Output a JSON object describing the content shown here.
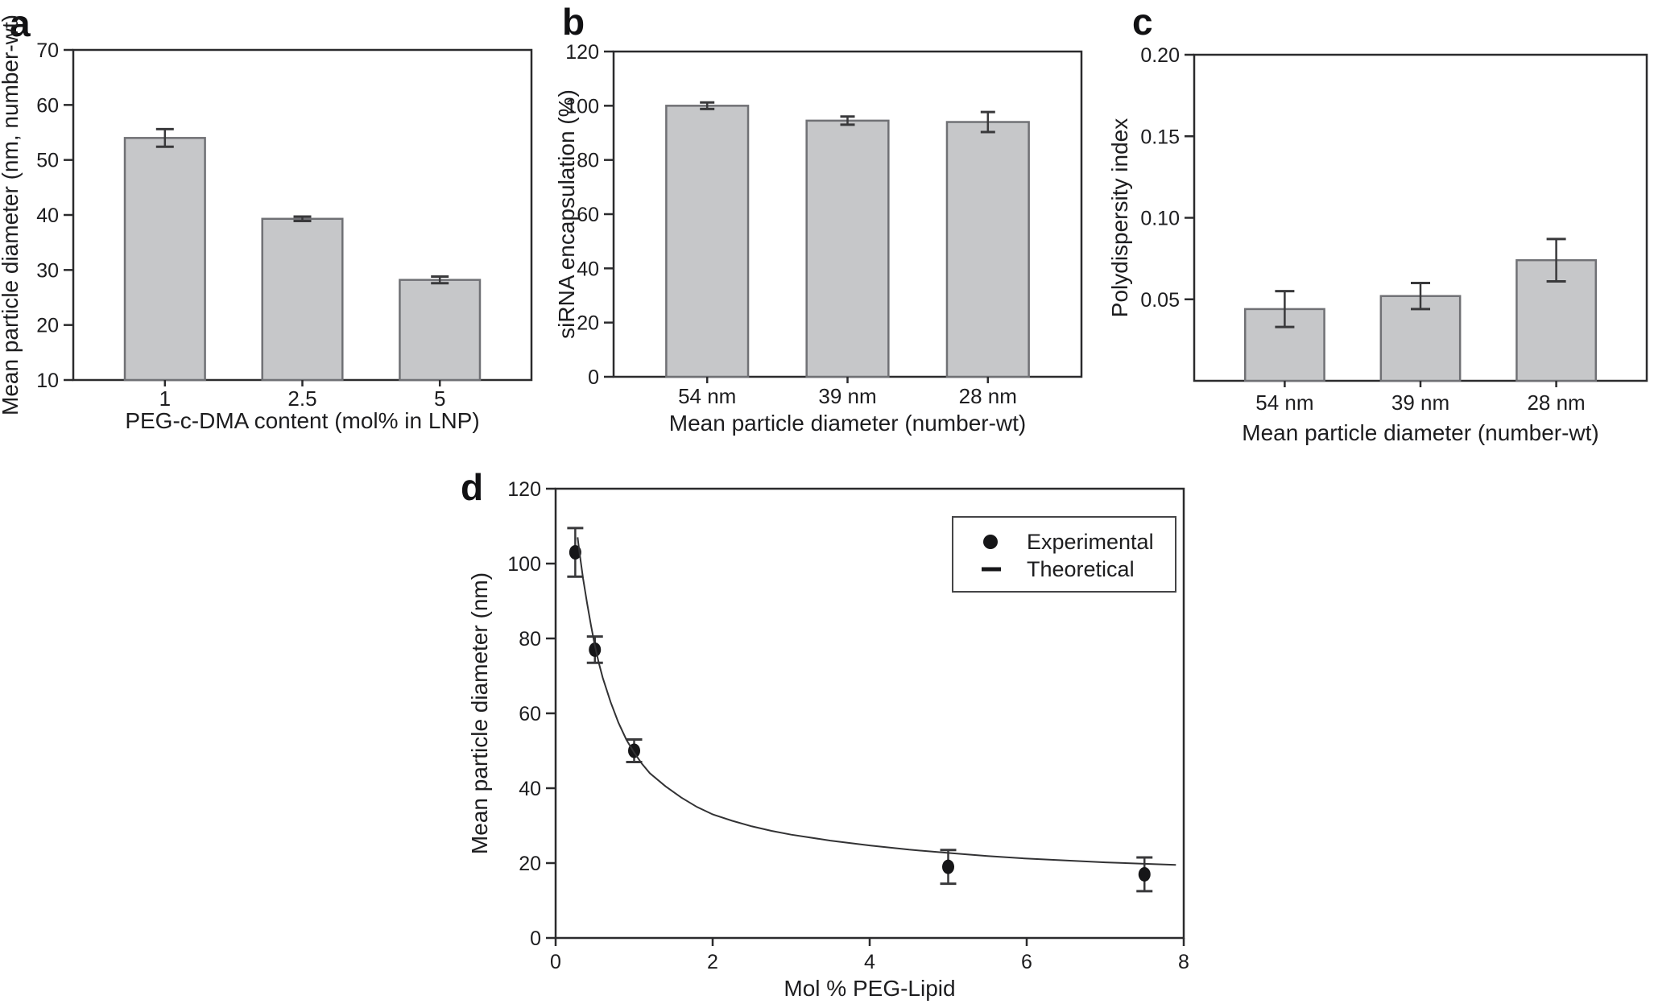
{
  "figure": {
    "panels": [
      {
        "id": "a",
        "label": "a"
      },
      {
        "id": "b",
        "label": "b"
      },
      {
        "id": "c",
        "label": "c"
      },
      {
        "id": "d",
        "label": "d"
      }
    ],
    "colors": {
      "background": "#ffffff",
      "bar_fill": "#c6c7c9",
      "bar_edge": "#707175",
      "error": "#39393b",
      "axis": "#2b2b2d",
      "text": "#1d1d1f",
      "curve": "#323234",
      "marker": "#161618",
      "legend_border": "#454547"
    }
  },
  "chart_data": [
    {
      "panel": "a",
      "type": "bar",
      "categories": [
        "1",
        "2.5",
        "5"
      ],
      "values": [
        54,
        39.3,
        28.2
      ],
      "errors": [
        1.6,
        0.4,
        0.6
      ],
      "xlabel": "PEG-c-DMA content (mol% in LNP)",
      "ylabel": "Mean particle diameter (nm, number-wt)",
      "ylim": [
        10,
        70
      ],
      "yticks": [
        10,
        20,
        30,
        40,
        50,
        60,
        70
      ],
      "ytick_decimals": 0,
      "grid": false,
      "legend_position": "none"
    },
    {
      "panel": "b",
      "type": "bar",
      "categories": [
        "54 nm",
        "39 nm",
        "28 nm"
      ],
      "values": [
        100,
        94.5,
        94
      ],
      "errors": [
        1.2,
        1.5,
        3.7
      ],
      "xlabel": "Mean particle diameter (number-wt)",
      "ylabel": "siRNA encapsulation (%)",
      "ylim": [
        0,
        120
      ],
      "yticks": [
        0,
        20,
        40,
        60,
        80,
        100,
        120
      ],
      "ytick_decimals": 0,
      "grid": false,
      "legend_position": "none"
    },
    {
      "panel": "c",
      "type": "bar",
      "categories": [
        "54 nm",
        "39 nm",
        "28 nm"
      ],
      "values": [
        0.044,
        0.052,
        0.074
      ],
      "errors": [
        0.011,
        0.008,
        0.013
      ],
      "xlabel": "Mean particle diameter (number-wt)",
      "ylabel": "Polydispersity index",
      "ylim": [
        0,
        0.2
      ],
      "yticks": [
        0.05,
        0.1,
        0.15,
        0.2
      ],
      "ytick_decimals": 2,
      "grid": false,
      "legend_position": "none"
    },
    {
      "panel": "d",
      "type": "scatter",
      "xlabel": "Mol % PEG-Lipid",
      "ylabel": "Mean particle diameter (nm)",
      "xlim": [
        0,
        8
      ],
      "xticks": [
        0,
        2,
        4,
        6,
        8
      ],
      "ylim": [
        0,
        120
      ],
      "yticks": [
        0,
        20,
        40,
        60,
        80,
        100,
        120
      ],
      "ytick_decimals": 0,
      "grid": false,
      "legend_position": "top-right",
      "legend": [
        {
          "label": "Experimental",
          "marker": "circle"
        },
        {
          "label": "Theoretical",
          "marker": "dash"
        }
      ],
      "series": [
        {
          "name": "Experimental",
          "type": "points",
          "x": [
            0.25,
            0.5,
            1,
            5,
            7.5
          ],
          "y": [
            103,
            77,
            50,
            19,
            17
          ],
          "yerr": [
            6.5,
            3.5,
            3,
            4.5,
            4.5
          ]
        },
        {
          "name": "Theoretical",
          "type": "curve",
          "points": [
            [
              0.28,
              107
            ],
            [
              0.3,
              103.5
            ],
            [
              0.35,
              96
            ],
            [
              0.4,
              89.5
            ],
            [
              0.45,
              83.5
            ],
            [
              0.5,
              78
            ],
            [
              0.55,
              73.5
            ],
            [
              0.6,
              69.5
            ],
            [
              0.7,
              63
            ],
            [
              0.8,
              57.5
            ],
            [
              0.9,
              53
            ],
            [
              1.0,
              49.5
            ],
            [
              1.1,
              46.5
            ],
            [
              1.2,
              44
            ],
            [
              1.4,
              40.5
            ],
            [
              1.6,
              37.5
            ],
            [
              1.8,
              35
            ],
            [
              2.0,
              33
            ],
            [
              2.25,
              31.3
            ],
            [
              2.5,
              29.8
            ],
            [
              2.75,
              28.6
            ],
            [
              3.0,
              27.6
            ],
            [
              3.5,
              26
            ],
            [
              4.0,
              24.7
            ],
            [
              4.5,
              23.6
            ],
            [
              5.0,
              22.7
            ],
            [
              5.5,
              21.9
            ],
            [
              6.0,
              21.2
            ],
            [
              6.5,
              20.7
            ],
            [
              7.0,
              20.2
            ],
            [
              7.5,
              19.8
            ],
            [
              7.9,
              19.5
            ]
          ]
        }
      ]
    }
  ]
}
